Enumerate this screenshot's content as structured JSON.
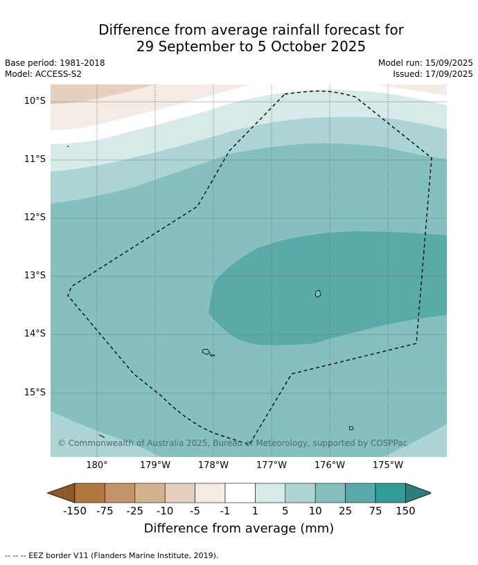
{
  "title_line1": "Difference from average rainfall forecast for",
  "title_line2": "29 September to 5 October 2025",
  "meta": {
    "base_period": "Base period: 1981-2018",
    "model": "Model: ACCESS-S2",
    "model_run": "Model run: 15/09/2025",
    "issued": "Issued: 17/09/2025"
  },
  "map": {
    "latitude_labels": [
      "10°S",
      "11°S",
      "12°S",
      "13°S",
      "14°S",
      "15°S"
    ],
    "longitude_labels": [
      "180°",
      "179°W",
      "178°W",
      "177°W",
      "176°W",
      "175°W"
    ],
    "copyright": "© Commonwealth of Australia 2025, Bureau of Meteorology, supported by COSPPac",
    "boundary": "EEZ border (dashed)",
    "land": "small islands (outlined)"
  },
  "colorbar": {
    "ticks": [
      "-150",
      "-75",
      "-25",
      "-10",
      "-5",
      "-1",
      "1",
      "5",
      "10",
      "25",
      "75",
      "150"
    ],
    "colors": [
      "#8a5a2b",
      "#b07840",
      "#c4946a",
      "#d4b290",
      "#e5d0bf",
      "#f5ebe6",
      "#ffffff",
      "#d6eae9",
      "#acd4d4",
      "#85c0bf",
      "#5aaaa9",
      "#339a98",
      "#2d7f7d"
    ],
    "label": "Difference from average (mm)"
  },
  "footnote": "--  --  -- EEZ border V11 (Flanders Marine Institute, 2019)."
}
